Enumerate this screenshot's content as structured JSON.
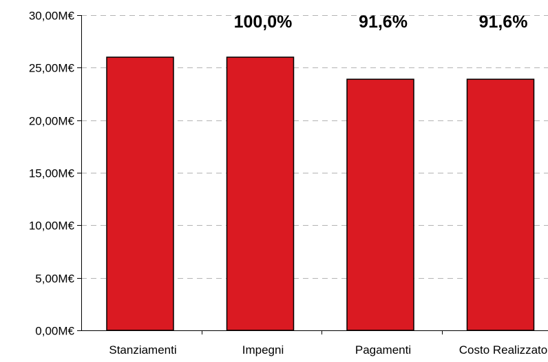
{
  "chart_data": {
    "type": "bar",
    "categories": [
      "Stanziamenti",
      "Impegni",
      "Pagamenti",
      "Costo Realizzato"
    ],
    "values": [
      26.0,
      26.0,
      23.9,
      23.9
    ],
    "percent_labels": [
      "",
      "100,0%",
      "91,6%",
      "91,6%"
    ],
    "ylim": [
      0,
      30
    ],
    "yticks": [
      0,
      5,
      10,
      15,
      20,
      25,
      30
    ],
    "ytick_labels": [
      "0,00M€",
      "5,00M€",
      "10,00M€",
      "15,00M€",
      "20,00M€",
      "25,00M€",
      "30,00M€"
    ],
    "grid": true,
    "bar_color": "#da1a22",
    "title": "",
    "xlabel": "",
    "ylabel": ""
  }
}
